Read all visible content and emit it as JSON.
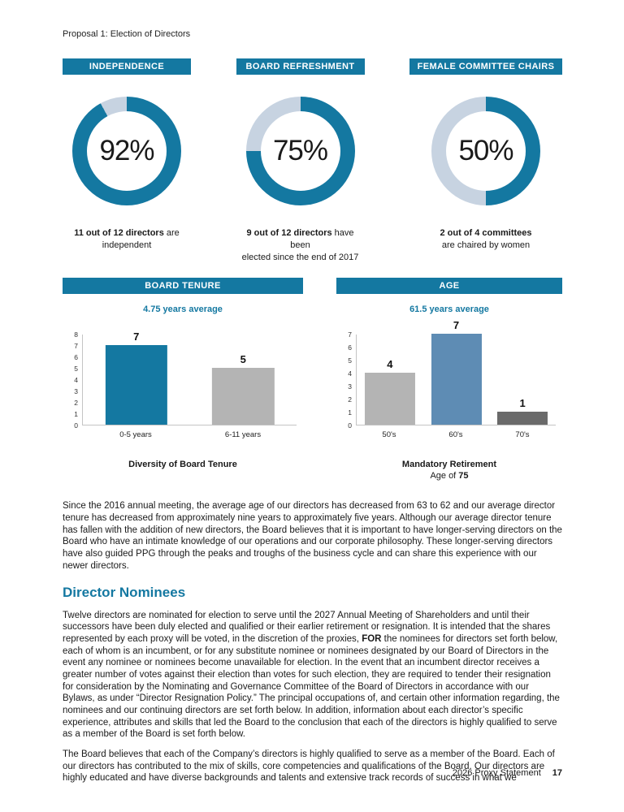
{
  "page": {
    "header": "Proposal 1: Election of Directors",
    "footer_label": "2026 Proxy Statement",
    "footer_page": "17"
  },
  "colors": {
    "accent": "#1478a1",
    "donut_remainder": "#c7d3e1"
  },
  "chart_data": [
    {
      "type": "donut",
      "title": "INDEPENDENCE",
      "percent": 92,
      "center_label": "92%",
      "colors": {
        "filled": "#1478a1",
        "remainder": "#c7d3e1"
      },
      "caption": {
        "bold": "11 out of 12 directors",
        "rest": " are",
        "line2": "independent"
      }
    },
    {
      "type": "donut",
      "title": "BOARD REFRESHMENT",
      "percent": 75,
      "center_label": "75%",
      "colors": {
        "filled": "#1478a1",
        "remainder": "#c7d3e1"
      },
      "caption": {
        "bold": "9 out of 12 directors",
        "rest": " have been",
        "line2": "elected since the end of 2017"
      }
    },
    {
      "type": "donut",
      "title": "FEMALE COMMITTEE CHAIRS",
      "percent": 50,
      "center_label": "50%",
      "colors": {
        "filled": "#1478a1",
        "remainder": "#c7d3e1"
      },
      "caption": {
        "bold": "2 out of 4 committees",
        "rest": "",
        "line2": "are chaired by women"
      }
    },
    {
      "type": "bar",
      "title": "BOARD TENURE",
      "subtitle": "4.75 years average",
      "categories": [
        "0-5 years",
        "6-11 years"
      ],
      "values": [
        7,
        5
      ],
      "bar_colors": [
        "#1478a1",
        "#b4b4b4"
      ],
      "ylim": [
        0,
        8
      ],
      "yticks": [
        0,
        1,
        2,
        3,
        4,
        5,
        6,
        7,
        8
      ],
      "grid": false,
      "caption": {
        "line1": "Diversity of Board Tenure",
        "line2_prefix": "",
        "line2_bold": ""
      }
    },
    {
      "type": "bar",
      "title": "AGE",
      "subtitle": "61.5 years average",
      "categories": [
        "50's",
        "60's",
        "70's"
      ],
      "values": [
        4,
        7,
        1
      ],
      "bar_colors": [
        "#b4b4b4",
        "#5e8cb4",
        "#6a6a6a"
      ],
      "ylim": [
        0,
        7
      ],
      "yticks": [
        0,
        1,
        2,
        3,
        4,
        5,
        6,
        7
      ],
      "grid": false,
      "caption": {
        "line1": "Mandatory Retirement",
        "line2_prefix": "Age of ",
        "line2_bold": "75"
      }
    }
  ],
  "body": {
    "paragraph1": "Since the 2016 annual meeting, the average age of our directors has decreased from 63 to 62 and our average director tenure has decreased from approximately nine years to approximately five years. Although our average director tenure has fallen with the addition of new directors, the Board believes that it is important to have longer-serving directors on the Board who have an intimate knowledge of our operations and our corporate philosophy. These longer-serving directors have also guided PPG through the peaks and troughs of the business cycle and can share this experience with our newer directors.",
    "heading": "Director Nominees",
    "paragraph2_before_for": "Twelve directors are nominated for election to serve until the 2027 Annual Meeting of Shareholders and until their successors have been duly elected and qualified or their earlier retirement or resignation. It is intended that the shares represented by each proxy will be voted, in the discretion of the proxies, ",
    "paragraph2_bold": "FOR",
    "paragraph2_after_for": " the nominees for directors set forth below, each of whom is an incumbent, or for any substitute nominee or nominees designated by our Board of Directors in the event any nominee or nominees become unavailable for election. In the event that an incumbent director receives a greater number of votes against their election than votes for such election, they are required to tender their resignation for consideration by the Nominating and Governance Committee of the Board of Directors in accordance with our Bylaws, as under “Director Resignation Policy.” The principal occupations of, and certain other information regarding, the nominees and our continuing directors are set forth below. In addition, information about each director’s specific experience, attributes and skills that led the Board to the conclusion that each of the directors is highly qualified to serve as a member of the Board is set forth below.",
    "paragraph3": "The Board believes that each of the Company’s directors is highly qualified to serve as a member of the Board. Each of our directors has contributed to the mix of skills, core competencies and qualifications of the Board. Our directors are highly educated and have diverse backgrounds and talents and extensive track records of success in what we"
  }
}
